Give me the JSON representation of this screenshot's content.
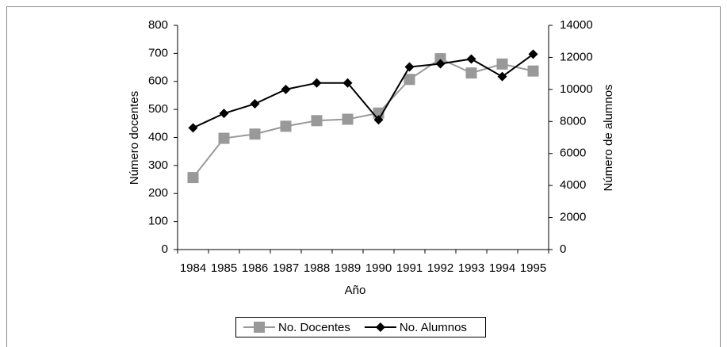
{
  "chart_data": {
    "type": "line",
    "x_label": "Año",
    "y_label": "Número docentes",
    "y2_label": "Número de alumnos",
    "categories": [
      "1984",
      "1985",
      "1986",
      "1987",
      "1988",
      "1989",
      "1990",
      "1991",
      "1992",
      "1993",
      "1994",
      "1995"
    ],
    "series": [
      {
        "name": "No. Docentes",
        "color": "#999999",
        "marker": "square",
        "values": [
          257,
          397,
          412,
          440,
          460,
          465,
          487,
          607,
          681,
          630,
          662,
          637
        ]
      },
      {
        "name": "No. Alumnos",
        "color": "#000000",
        "marker": "diamond",
        "axis": "y2",
        "values": [
          7600,
          8500,
          9100,
          10000,
          10400,
          10400,
          8100,
          11400,
          11600,
          11900,
          10800,
          12200
        ]
      }
    ],
    "ylim": [
      0,
      800
    ],
    "yticks": [
      0,
      100,
      200,
      300,
      400,
      500,
      600,
      700,
      800
    ],
    "y2lim": [
      0,
      14000
    ],
    "y2ticks": [
      0,
      2000,
      4000,
      6000,
      8000,
      10000,
      12000,
      14000
    ],
    "grid": false,
    "legend": "bottom"
  }
}
